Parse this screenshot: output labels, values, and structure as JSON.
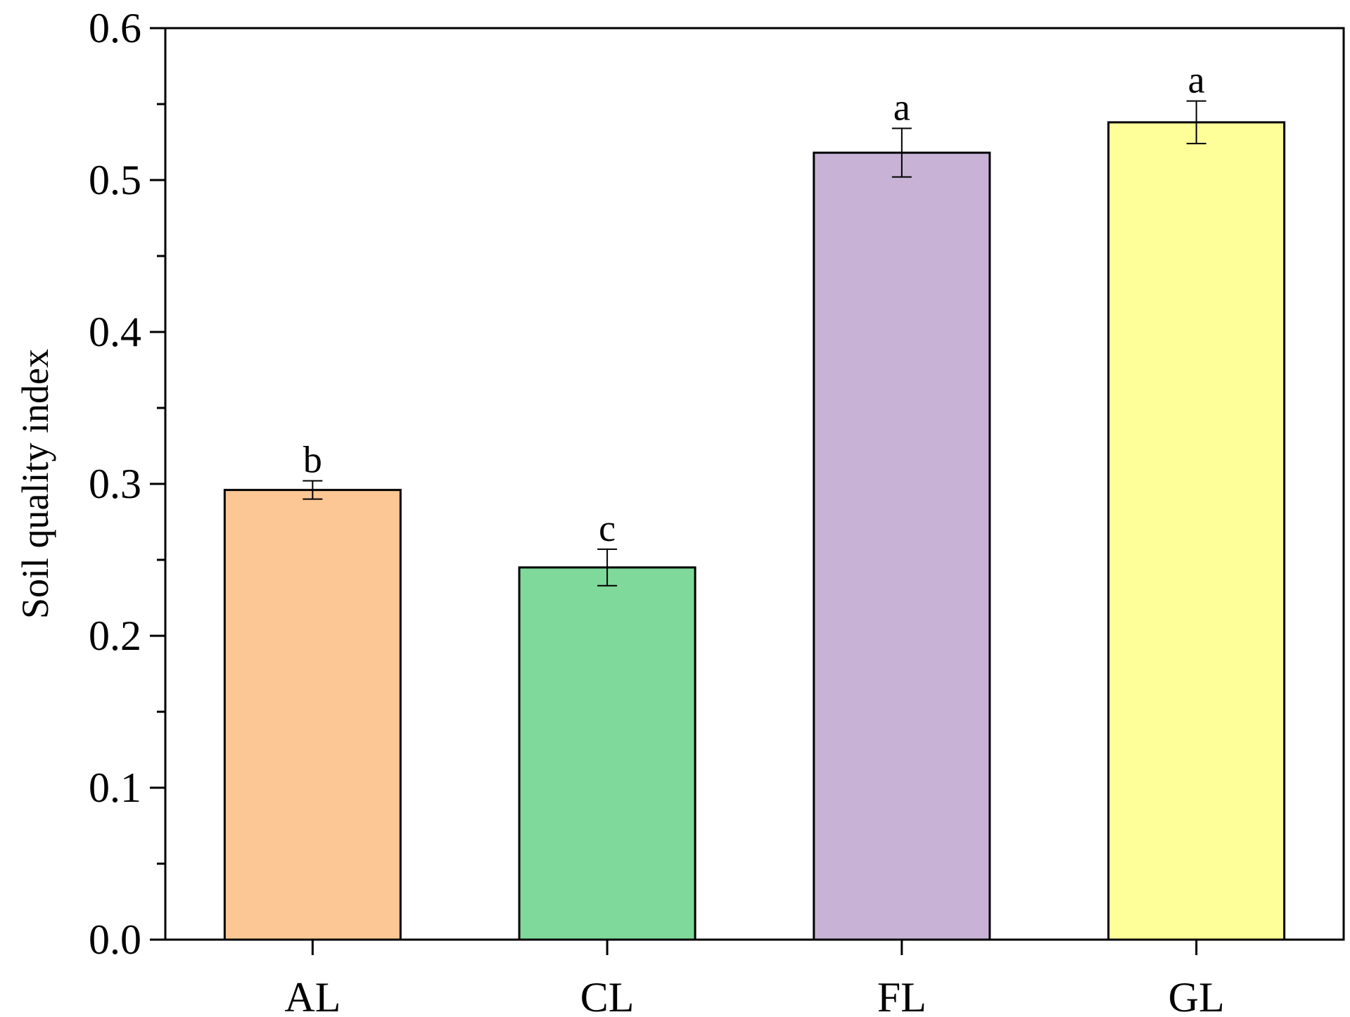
{
  "chart_data": {
    "type": "bar",
    "categories": [
      "AL",
      "CL",
      "FL",
      "GL"
    ],
    "values": [
      0.296,
      0.245,
      0.518,
      0.538
    ],
    "errors": [
      0.006,
      0.012,
      0.016,
      0.014
    ],
    "significance_labels": [
      "b",
      "c",
      "a",
      "a"
    ],
    "colors": [
      "#FCC794",
      "#7FD99A",
      "#C8B3D6",
      "#FFFF99"
    ],
    "title": "",
    "xlabel": "",
    "ylabel": "Soil quality index",
    "ylim": [
      0,
      0.6
    ],
    "yticks": [
      "0.0",
      "0.1",
      "0.2",
      "0.3",
      "0.4",
      "0.5",
      "0.6"
    ],
    "grid": false,
    "legend": "none"
  }
}
